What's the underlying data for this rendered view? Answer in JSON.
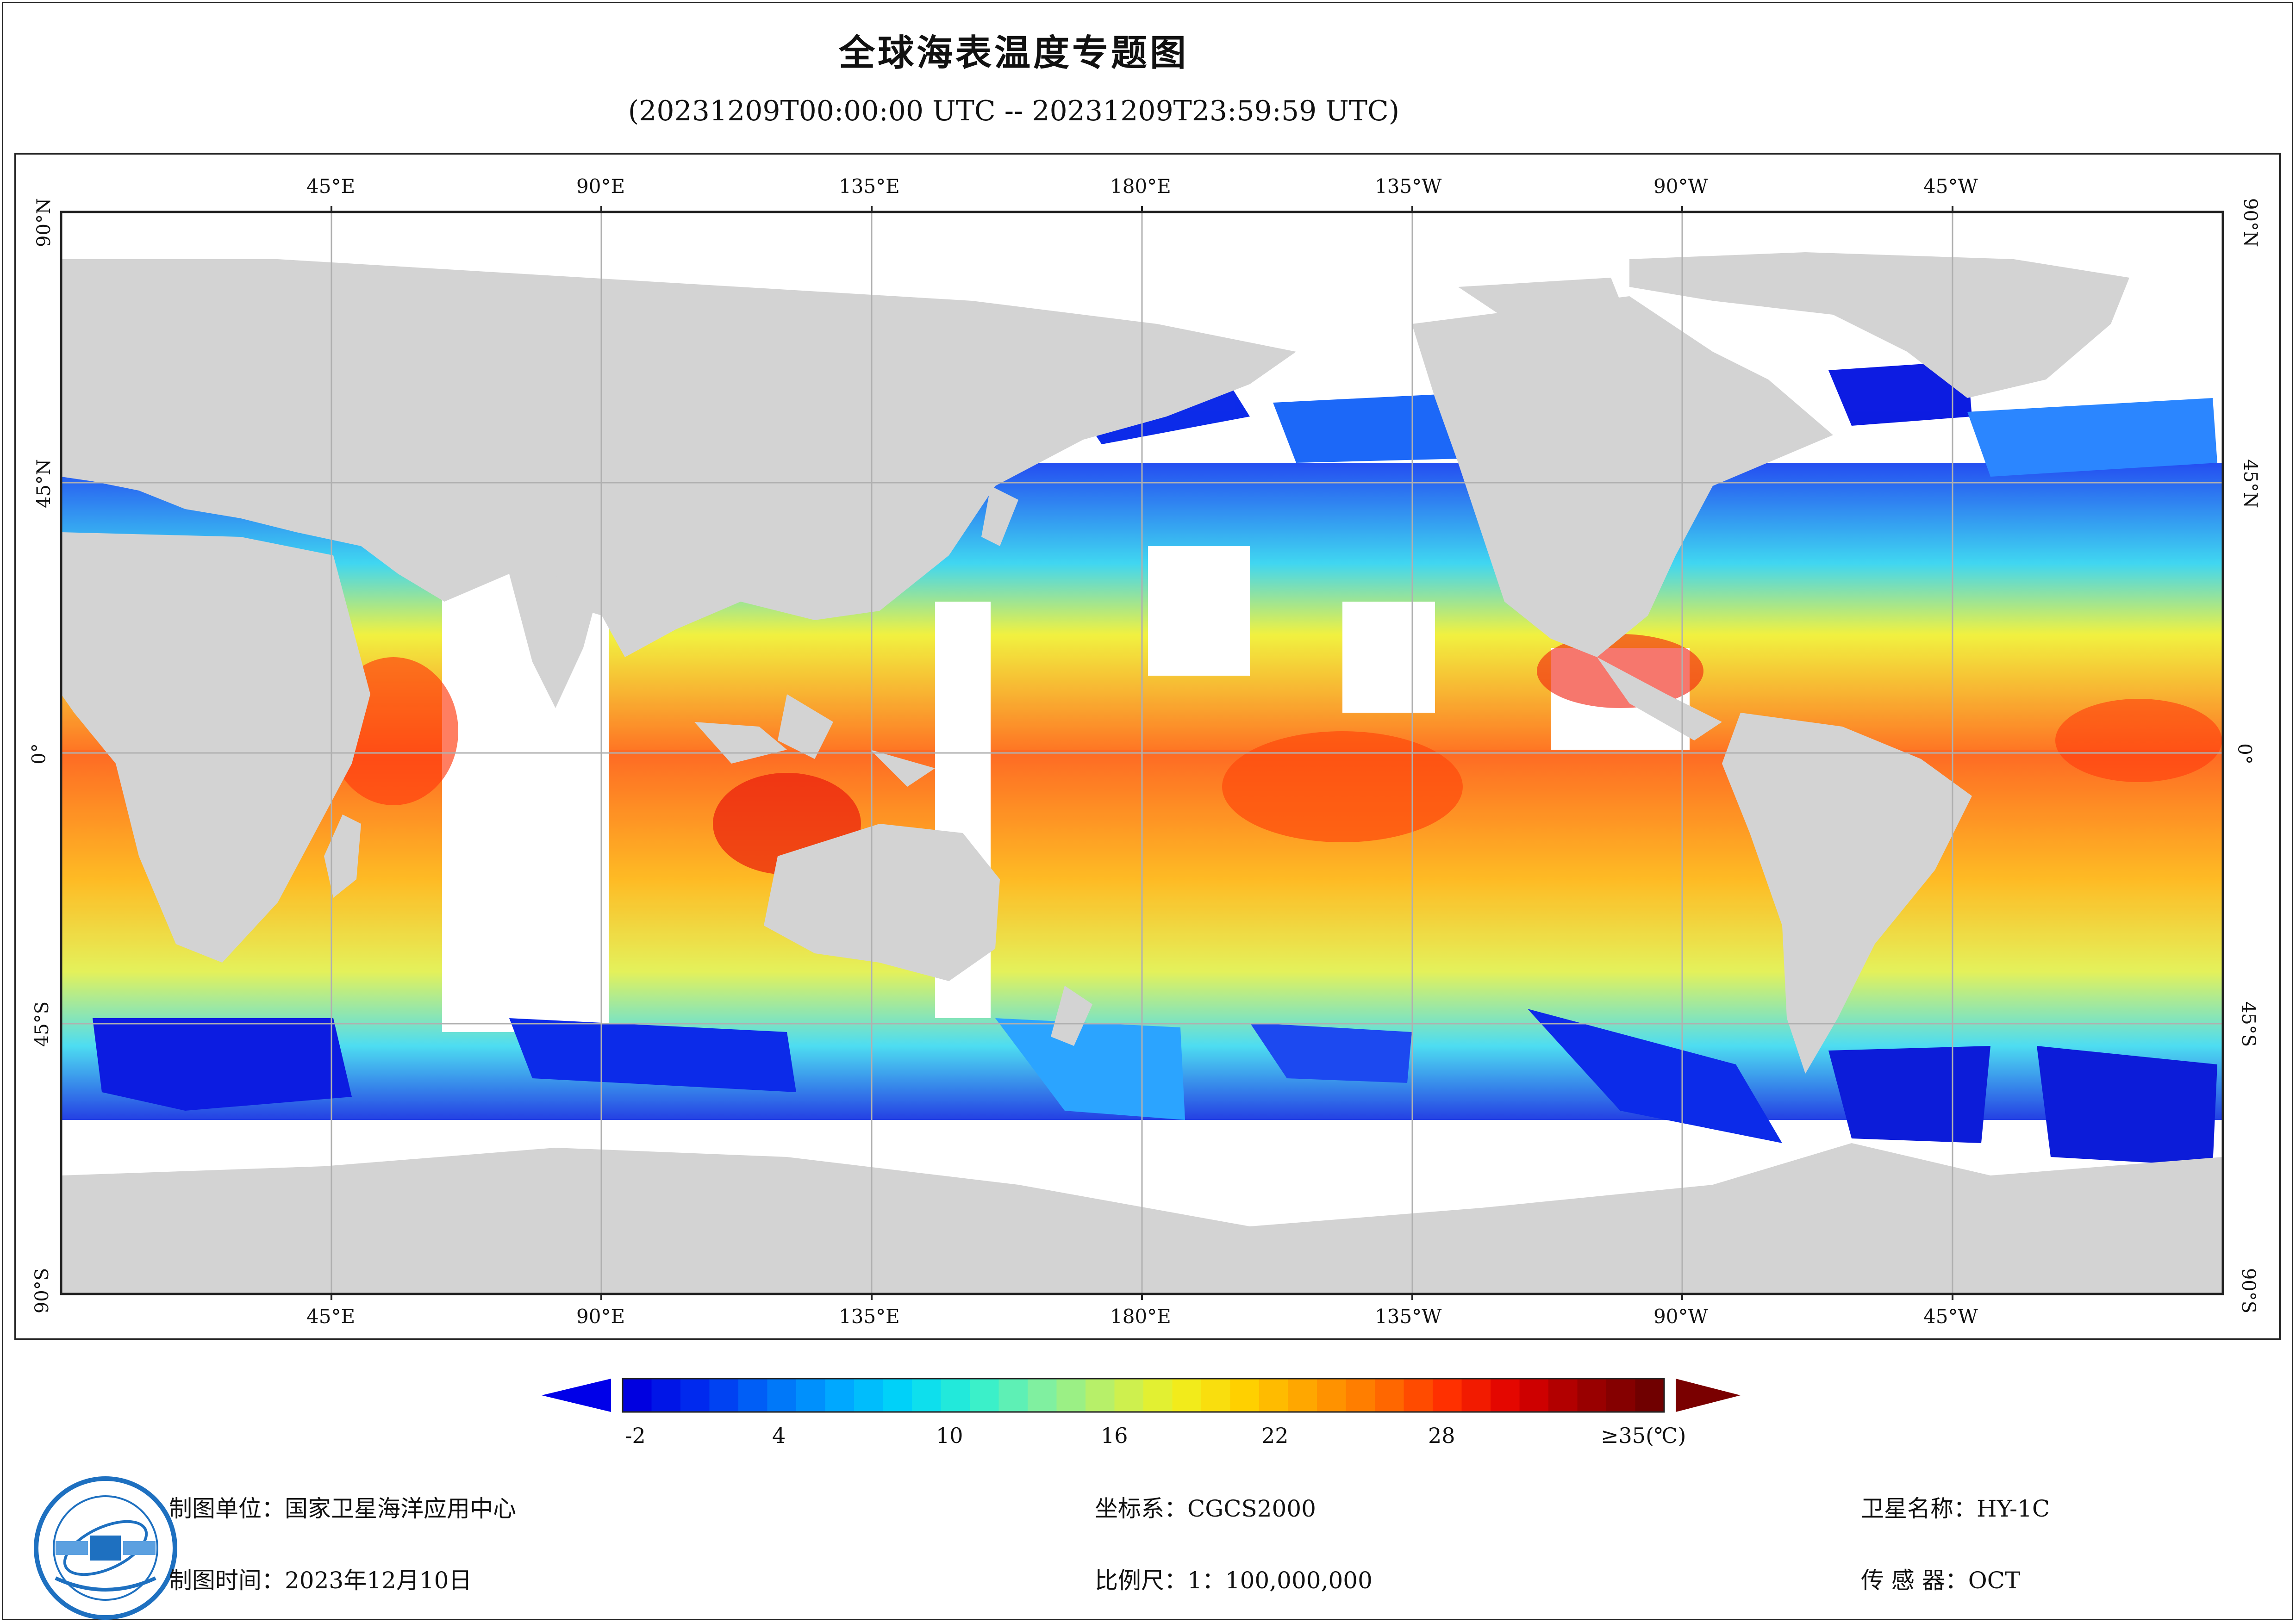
{
  "header": {
    "title": "全球海表温度专题图",
    "subtitle": "(20231209T00:00:00 UTC -- 20231209T23:59:59 UTC)"
  },
  "map": {
    "top_lon_labels": [
      "45°E",
      "90°E",
      "135°E",
      "180°E",
      "135°W",
      "90°W",
      "45°W"
    ],
    "bottom_lon_labels": [
      "45°E",
      "90°E",
      "135°E",
      "180°E",
      "135°W",
      "90°W",
      "45°W"
    ],
    "left_lat_labels": [
      "90°N",
      "45°N",
      "0°",
      "45°S",
      "90°S"
    ],
    "right_lat_labels": [
      "90°N",
      "45°N",
      "0°",
      "45°S",
      "90°S"
    ],
    "land_color": "#d3d3d3",
    "missing_color": "#ffffff",
    "grid_color": "#b0b0b0"
  },
  "colorbar": {
    "tick_labels": [
      "-2",
      "4",
      "10",
      "16",
      "22",
      "28",
      "≥35(℃)"
    ],
    "min_arrow_color": "#0000e8",
    "max_arrow_color": "#7a0000",
    "colors": [
      "#0000e0",
      "#0030f0",
      "#0070f8",
      "#00a8ff",
      "#00d8f8",
      "#30f0d0",
      "#80f0a0",
      "#c0f060",
      "#f0f020",
      "#ffd000",
      "#ffa000",
      "#ff7000",
      "#ff3000",
      "#e00000",
      "#a00000",
      "#700000"
    ]
  },
  "footer": {
    "org_label": "制图单位：",
    "org_value": "国家卫星海洋应用中心",
    "time_label": "制图时间：",
    "time_value": "2023年12月10日",
    "crs_label": "坐标系：",
    "crs_value": "CGCS2000",
    "scale_label": "比例尺：",
    "scale_value": "1：100,000,000",
    "sat_label": "卫星名称：",
    "sat_value": "HY-1C",
    "sensor_label": "传 感 器：",
    "sensor_value": "OCT"
  },
  "logo": {
    "icon": "nsoas-emblem-icon"
  }
}
